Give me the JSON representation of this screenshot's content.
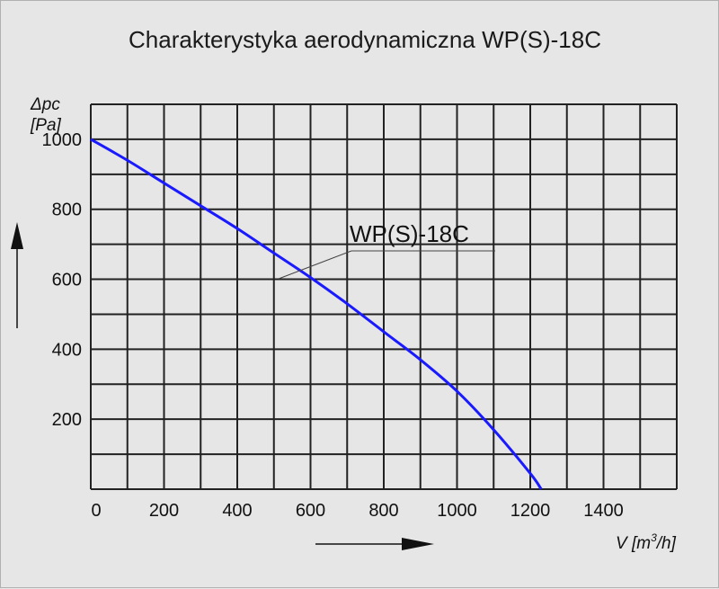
{
  "chart_data": {
    "type": "line",
    "title": "Charakterystyka aerodynamiczna  WP(S)-18C",
    "xlabel": "V [m³/h]",
    "xlabel_parts": {
      "main": "V [m",
      "sup": "3",
      "end": "/h]"
    },
    "ylabel": "Δpc [Pa]",
    "ylabel_lines": [
      "Δpc",
      "[Pa]"
    ],
    "xlim": [
      0,
      1600
    ],
    "ylim": [
      0,
      1100
    ],
    "x_ticks": [
      0,
      200,
      400,
      600,
      800,
      1000,
      1200,
      1400
    ],
    "y_ticks": [
      200,
      400,
      600,
      800,
      1000
    ],
    "grid": true,
    "series": [
      {
        "name": "WP(S)-18C",
        "color": "#1a1aff",
        "x": [
          0,
          100,
          200,
          300,
          400,
          500,
          600,
          700,
          800,
          900,
          1000,
          1100,
          1200,
          1230
        ],
        "y": [
          1000,
          940,
          875,
          810,
          745,
          675,
          605,
          530,
          450,
          370,
          280,
          170,
          45,
          0
        ]
      }
    ]
  },
  "colors": {
    "background": "#e6e6e6",
    "grid": "#222222",
    "curve": "#1a1aff",
    "arrow": "#111111"
  }
}
